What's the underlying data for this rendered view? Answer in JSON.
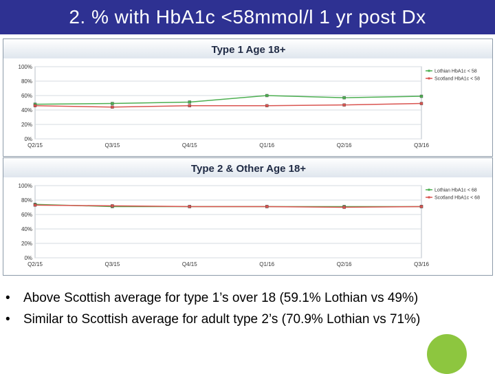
{
  "slide": {
    "title": "2. % with HbA1c <58mmol/l 1 yr post Dx",
    "title_bar_color": "#2e3192",
    "bullets": [
      "Above Scottish average for type 1’s over 18 (59.1% Lothian vs 49%)",
      "Similar to Scottish average for adult type 2’s (70.9% Lothian vs 71%)"
    ],
    "decoration_color": "#8dc63f"
  },
  "chart_data": [
    {
      "type": "line",
      "title": "Type 1 Age 18+",
      "categories": [
        "Q2/15",
        "Q3/15",
        "Q4/15",
        "Q1/16",
        "Q2/16",
        "Q3/16"
      ],
      "y_ticks": [
        "100%",
        "80%",
        "60%",
        "40%",
        "20%",
        "0%"
      ],
      "ylim": [
        0,
        100
      ],
      "grid": "horizontal",
      "legend_position": "top-right",
      "series": [
        {
          "name": "Lothian HbA1c < 58",
          "color": "#4caf50",
          "values": [
            48,
            49,
            51,
            60,
            57,
            59
          ]
        },
        {
          "name": "Scotland HbA1c < 58",
          "color": "#d9534f",
          "values": [
            46,
            44,
            46,
            46,
            47,
            49
          ]
        }
      ]
    },
    {
      "type": "line",
      "title": "Type 2 & Other Age 18+",
      "categories": [
        "Q2/15",
        "Q3/15",
        "Q4/15",
        "Q1/16",
        "Q2/16",
        "Q3/16"
      ],
      "y_ticks": [
        "100%",
        "80%",
        "60%",
        "40%",
        "20%",
        "0%"
      ],
      "ylim": [
        0,
        100
      ],
      "grid": "horizontal",
      "legend_position": "top-right",
      "series": [
        {
          "name": "Lothian HbA1c < 68",
          "color": "#4caf50",
          "values": [
            74,
            71,
            71,
            71,
            71,
            71
          ]
        },
        {
          "name": "Scotland HbA1c < 68",
          "color": "#d9534f",
          "values": [
            73,
            72,
            71,
            71,
            70,
            71
          ]
        }
      ]
    }
  ]
}
